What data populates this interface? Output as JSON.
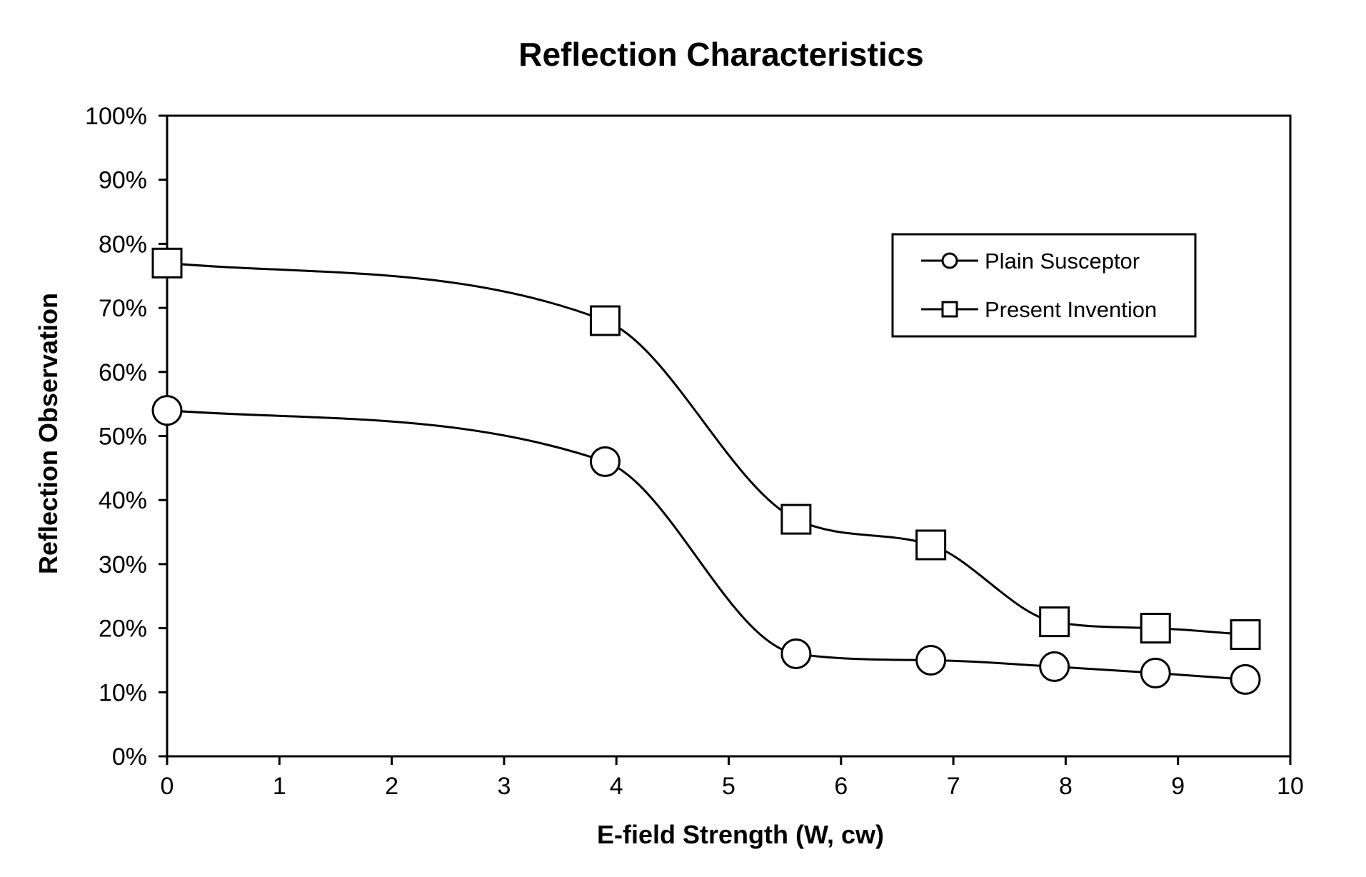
{
  "chart_data": {
    "type": "line",
    "title": "Reflection Characteristics",
    "xlabel": "E-field Strength (W, cw)",
    "ylabel": "Reflection Observation",
    "xlim": [
      0,
      10
    ],
    "ylim": [
      0,
      100
    ],
    "x_ticks": [
      "0",
      "1",
      "2",
      "3",
      "4",
      "5",
      "6",
      "7",
      "8",
      "9",
      "10"
    ],
    "y_ticks": [
      "0%",
      "10%",
      "20%",
      "30%",
      "40%",
      "50%",
      "60%",
      "70%",
      "80%",
      "90%",
      "100%"
    ],
    "legend_position": "top-right",
    "grid": false,
    "smooth": true,
    "series": [
      {
        "name": "Plain Susceptor",
        "marker": "circle",
        "x": [
          0,
          3.9,
          5.6,
          6.8,
          7.9,
          8.8,
          9.6
        ],
        "y": [
          54,
          46,
          16,
          15,
          14,
          13,
          12
        ]
      },
      {
        "name": "Present Invention",
        "marker": "square",
        "x": [
          0,
          3.9,
          5.6,
          6.8,
          7.9,
          8.8,
          9.6
        ],
        "y": [
          77,
          68,
          37,
          33,
          21,
          20,
          19
        ]
      }
    ]
  }
}
